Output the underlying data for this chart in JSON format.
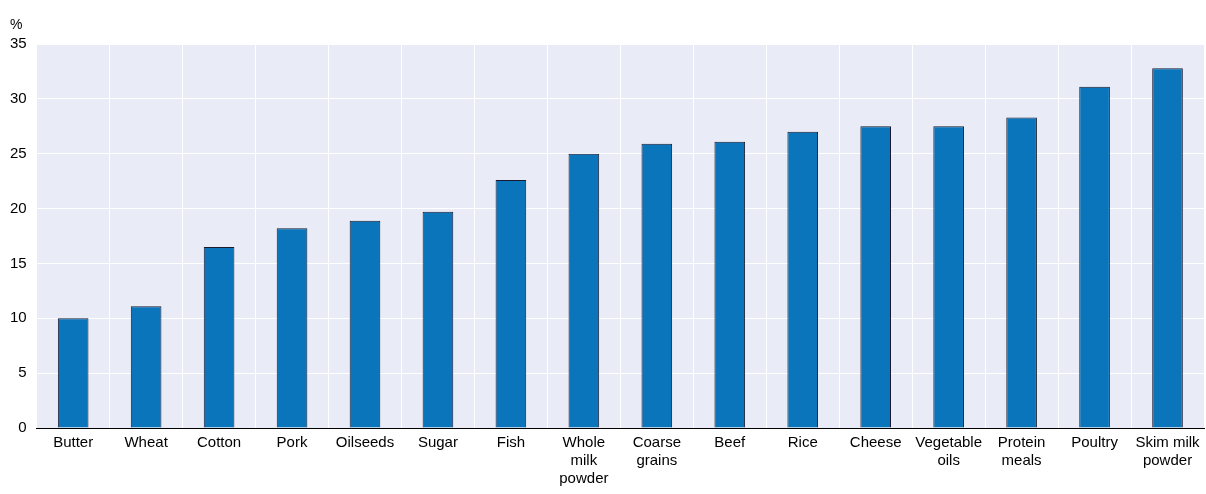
{
  "chart_data": {
    "type": "bar",
    "ylabel": "%",
    "categories": [
      "Butter",
      "Wheat",
      "Cotton",
      "Pork",
      "Oilseeds",
      "Sugar",
      "Fish",
      "Whole milk powder",
      "Coarse grains",
      "Beef",
      "Rice",
      "Cheese",
      "Vegetable oils",
      "Protein meals",
      "Poultry",
      "Skim milk powder"
    ],
    "values": [
      10.0,
      11.1,
      16.5,
      18.2,
      18.9,
      19.7,
      22.6,
      25.0,
      25.9,
      26.1,
      27.0,
      27.5,
      27.5,
      28.3,
      31.1,
      32.8
    ],
    "color": "#0b75bb",
    "ylim": [
      0,
      35
    ],
    "yticks": [
      0,
      5,
      10,
      15,
      20,
      25,
      30,
      35
    ],
    "grid": true
  }
}
